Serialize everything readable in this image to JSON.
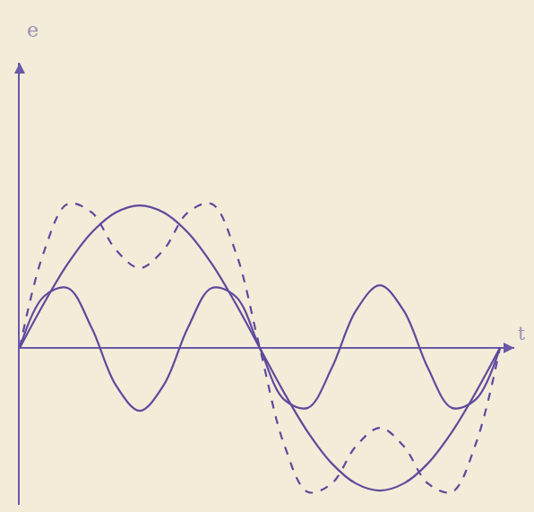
{
  "chart_data": {
    "type": "line",
    "y_label": "e",
    "x_label": "t",
    "x": [
      0,
      0.5,
      1,
      1.5,
      2,
      2.5,
      3,
      3.5,
      4,
      4.5,
      5,
      5.5,
      6,
      6.5,
      7,
      7.5,
      8,
      8.5,
      9,
      9.5,
      10
    ],
    "series": [
      {
        "color": "#5e4a9c",
        "line_style": "solid",
        "values": [
          0,
          3.1,
          5.9,
          8.1,
          9.5,
          10,
          9.5,
          8.1,
          5.9,
          3.1,
          0,
          -3.1,
          -5.9,
          -8.1,
          -9.5,
          -10,
          -9.5,
          -8.1,
          -5.9,
          -3.1,
          0
        ]
      },
      {
        "color": "#5e4a9c",
        "line_style": "solid",
        "values": [
          0,
          3.6,
          4.2,
          1.4,
          -2.6,
          -4.4,
          -2.6,
          1.4,
          4.2,
          3.6,
          0,
          -3.6,
          -4.2,
          -1.4,
          2.6,
          4.4,
          2.6,
          -1.4,
          -4.2,
          -3.6,
          0
        ]
      },
      {
        "color": "#5e4a9c",
        "line_style": "dashed",
        "values": [
          0,
          6.7,
          10.1,
          9.5,
          6.9,
          5.6,
          6.9,
          9.5,
          10.1,
          6.7,
          0,
          -6.7,
          -10.1,
          -9.5,
          -6.9,
          -5.6,
          -6.9,
          -9.5,
          -10.1,
          -6.7,
          0
        ]
      }
    ],
    "xlim": [
      0,
      10.3
    ],
    "ylim": [
      -11,
      20
    ],
    "xticks": [],
    "yticks": [],
    "tick_labels": false,
    "grid": false
  }
}
